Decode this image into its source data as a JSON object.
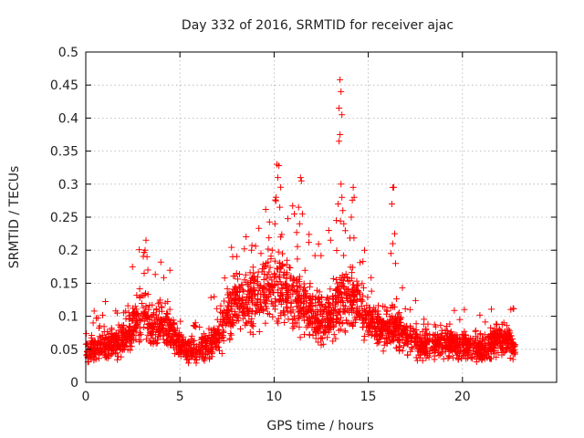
{
  "chart_data": {
    "type": "scatter",
    "title": "Day 332 of 2016, SRMTID for receiver ajac",
    "xlabel": "GPS time / hours",
    "ylabel": "SRMTID / TECUs",
    "xlim": [
      0,
      25
    ],
    "ylim": [
      0,
      0.5
    ],
    "xticks": [
      0,
      5,
      10,
      15,
      20
    ],
    "yticks": [
      0,
      0.05,
      0.1,
      0.15,
      0.2,
      0.25,
      0.3,
      0.35,
      0.4,
      0.45,
      0.5
    ],
    "xtick_labels": [
      "0",
      "5",
      "10",
      "15",
      "20"
    ],
    "ytick_labels": [
      "0",
      "0.05",
      "0.1",
      "0.15",
      "0.2",
      "0.25",
      "0.3",
      "0.35",
      "0.4",
      "0.45",
      "0.5"
    ],
    "grid": true,
    "legend": "none",
    "marker": "+",
    "color": "#ff0000",
    "x_max_data": 22.8,
    "trend": [
      [
        0.0,
        0.048
      ],
      [
        0.5,
        0.05
      ],
      [
        1.0,
        0.055
      ],
      [
        1.5,
        0.058
      ],
      [
        2.0,
        0.065
      ],
      [
        2.5,
        0.085
      ],
      [
        3.0,
        0.105
      ],
      [
        3.5,
        0.085
      ],
      [
        4.0,
        0.09
      ],
      [
        4.5,
        0.075
      ],
      [
        5.0,
        0.055
      ],
      [
        5.5,
        0.05
      ],
      [
        6.0,
        0.05
      ],
      [
        6.5,
        0.055
      ],
      [
        7.0,
        0.07
      ],
      [
        7.5,
        0.095
      ],
      [
        8.0,
        0.12
      ],
      [
        8.5,
        0.12
      ],
      [
        9.0,
        0.13
      ],
      [
        9.5,
        0.135
      ],
      [
        10.0,
        0.15
      ],
      [
        10.5,
        0.14
      ],
      [
        11.0,
        0.13
      ],
      [
        11.5,
        0.125
      ],
      [
        12.0,
        0.105
      ],
      [
        12.5,
        0.095
      ],
      [
        13.0,
        0.1
      ],
      [
        13.5,
        0.12
      ],
      [
        14.0,
        0.125
      ],
      [
        14.5,
        0.115
      ],
      [
        15.0,
        0.09
      ],
      [
        15.5,
        0.08
      ],
      [
        16.0,
        0.085
      ],
      [
        16.5,
        0.085
      ],
      [
        17.0,
        0.07
      ],
      [
        17.5,
        0.055
      ],
      [
        18.0,
        0.055
      ],
      [
        18.5,
        0.06
      ],
      [
        19.0,
        0.06
      ],
      [
        19.5,
        0.055
      ],
      [
        20.0,
        0.055
      ],
      [
        20.5,
        0.055
      ],
      [
        21.0,
        0.05
      ],
      [
        21.5,
        0.058
      ],
      [
        22.0,
        0.065
      ],
      [
        22.5,
        0.06
      ],
      [
        22.8,
        0.05
      ]
    ],
    "outliers": [
      [
        3.2,
        0.215
      ],
      [
        3.15,
        0.2
      ],
      [
        3.25,
        0.19
      ],
      [
        3.3,
        0.17
      ],
      [
        3.1,
        0.165
      ],
      [
        10.15,
        0.33
      ],
      [
        10.25,
        0.328
      ],
      [
        10.2,
        0.31
      ],
      [
        10.1,
        0.28
      ],
      [
        10.3,
        0.265
      ],
      [
        10.05,
        0.24
      ],
      [
        10.35,
        0.22
      ],
      [
        11.4,
        0.31
      ],
      [
        11.45,
        0.305
      ],
      [
        11.3,
        0.265
      ],
      [
        11.5,
        0.255
      ],
      [
        11.35,
        0.24
      ],
      [
        13.5,
        0.458
      ],
      [
        13.55,
        0.44
      ],
      [
        13.45,
        0.415
      ],
      [
        13.6,
        0.405
      ],
      [
        13.5,
        0.375
      ],
      [
        13.45,
        0.365
      ],
      [
        13.55,
        0.3
      ],
      [
        13.6,
        0.28
      ],
      [
        13.4,
        0.27
      ],
      [
        13.65,
        0.26
      ],
      [
        13.3,
        0.245
      ],
      [
        13.7,
        0.24
      ],
      [
        14.2,
        0.295
      ],
      [
        14.25,
        0.28
      ],
      [
        14.1,
        0.25
      ],
      [
        12.9,
        0.23
      ],
      [
        13.0,
        0.215
      ],
      [
        16.3,
        0.295
      ],
      [
        16.35,
        0.295
      ],
      [
        16.25,
        0.27
      ],
      [
        16.4,
        0.225
      ],
      [
        16.3,
        0.21
      ],
      [
        16.2,
        0.195
      ],
      [
        16.45,
        0.18
      ],
      [
        8.8,
        0.2
      ],
      [
        9.3,
        0.195
      ],
      [
        9.9,
        0.2
      ],
      [
        7.8,
        0.19
      ],
      [
        14.8,
        0.2
      ]
    ]
  }
}
